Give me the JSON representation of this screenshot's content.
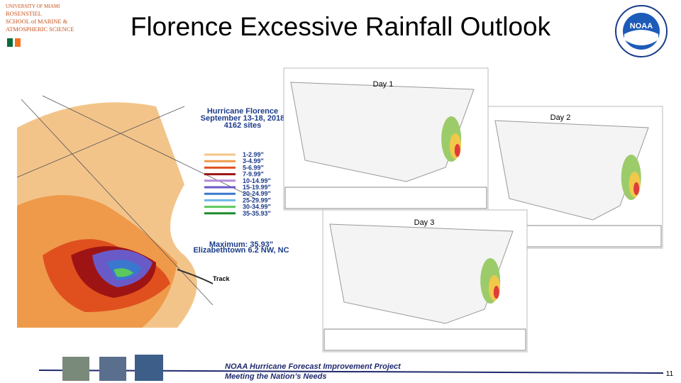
{
  "header": {
    "title": "Florence Excessive Rainfall Outlook",
    "logo_left": [
      "UNIVERSITY OF MIAMI",
      "ROSENSTIEL",
      "SCHOOL of MARINE &",
      "ATMOSPHERIC SCIENCE"
    ],
    "logo_right": "NOAA"
  },
  "rainfall_map": {
    "title": [
      "Hurricane Florence",
      "September 13-18, 2018",
      "4162 sites"
    ],
    "legend": [
      {
        "label": "1-2.99\"",
        "color": "#f3c48a"
      },
      {
        "label": "3-4.99\"",
        "color": "#ee9a4a"
      },
      {
        "label": "5-6.99\"",
        "color": "#e0501e"
      },
      {
        "label": "7-9.99\"",
        "color": "#9e1414"
      },
      {
        "label": "10-14.99\"",
        "color": "#b48ad8"
      },
      {
        "label": "15-19.99\"",
        "color": "#6a5ac8"
      },
      {
        "label": "20-24.99\"",
        "color": "#3a78d0"
      },
      {
        "label": "25-29.99\"",
        "color": "#6ab8e8"
      },
      {
        "label": "30-34.99\"",
        "color": "#5cc85c"
      },
      {
        "label": "35-35.93\"",
        "color": "#1c8a2c"
      }
    ],
    "maximum": [
      "Maximum: 35.93\"",
      "Elizabethtown 6.2 NW, NC"
    ],
    "track_label": "Track"
  },
  "outlooks": [
    {
      "label": "Day 1"
    },
    {
      "label": "Day 2"
    },
    {
      "label": "Day 3"
    }
  ],
  "footer": {
    "lines": [
      "NOAA Hurricane Forecast Improvement Project",
      "Meeting the Nation’s Needs"
    ],
    "page_number": "11"
  }
}
